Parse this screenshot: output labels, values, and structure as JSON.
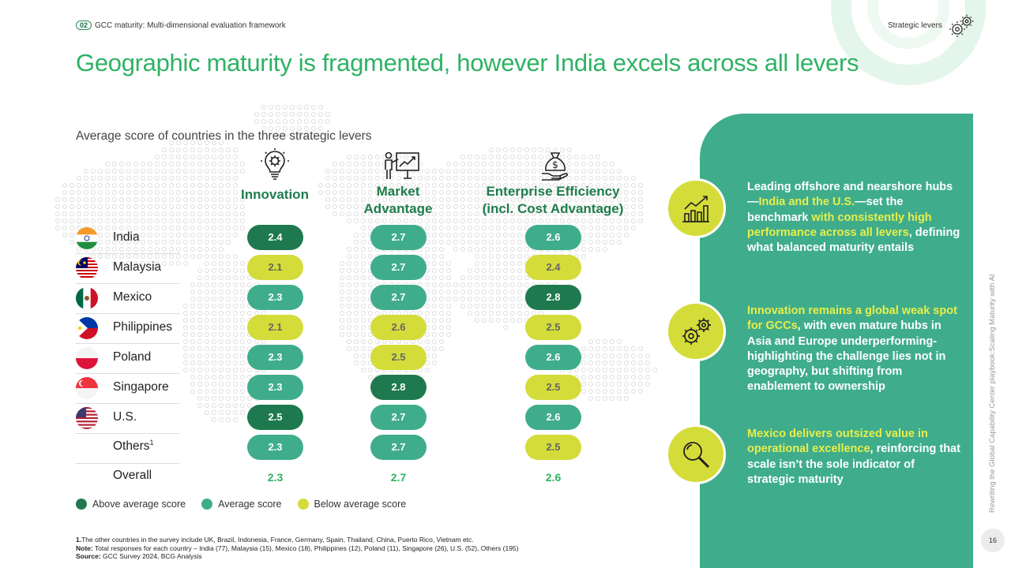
{
  "header": {
    "section_number": "02",
    "section_label": "GCC maturity: Multi-dimensional evaluation framework",
    "right_label": "Strategic levers"
  },
  "title": "Geographic maturity is fragmented, however India excels across all levers",
  "subtitle": "Average score of countries in the three strategic levers",
  "levers": [
    {
      "line1": "Innovation",
      "line2": "",
      "icon": "lightbulb-gear-icon"
    },
    {
      "line1": "Market",
      "line2": "Advantage",
      "icon": "presentation-growth-icon"
    },
    {
      "line1": "Enterprise Efficiency",
      "line2": "(incl. Cost Advantage)",
      "icon": "money-bag-hand-icon"
    }
  ],
  "rows": [
    {
      "country": "India",
      "scores": [
        "2.4",
        "2.7",
        "2.6"
      ],
      "levels": [
        "above",
        "avg",
        "avg"
      ]
    },
    {
      "country": "Malaysia",
      "scores": [
        "2.1",
        "2.7",
        "2.4"
      ],
      "levels": [
        "below",
        "avg",
        "below"
      ]
    },
    {
      "country": "Mexico",
      "scores": [
        "2.3",
        "2.7",
        "2.8"
      ],
      "levels": [
        "avg",
        "avg",
        "above"
      ]
    },
    {
      "country": "Philippines",
      "scores": [
        "2.1",
        "2.6",
        "2.5"
      ],
      "levels": [
        "below",
        "below",
        "below"
      ]
    },
    {
      "country": "Poland",
      "scores": [
        "2.3",
        "2.5",
        "2.6"
      ],
      "levels": [
        "avg",
        "below",
        "avg"
      ]
    },
    {
      "country": "Singapore",
      "scores": [
        "2.3",
        "2.8",
        "2.5"
      ],
      "levels": [
        "avg",
        "above",
        "below"
      ]
    },
    {
      "country": "U.S.",
      "scores": [
        "2.5",
        "2.7",
        "2.6"
      ],
      "levels": [
        "above",
        "avg",
        "avg"
      ]
    },
    {
      "country": "Others",
      "country_sup": "1",
      "scores": [
        "2.3",
        "2.7",
        "2.5"
      ],
      "levels": [
        "avg",
        "avg",
        "below"
      ]
    }
  ],
  "overall": {
    "label": "Overall",
    "scores": [
      "2.3",
      "2.7",
      "2.6"
    ]
  },
  "legend": [
    {
      "label": "Above average score",
      "color": "#1e7a4e"
    },
    {
      "label": "Average score",
      "color": "#3fad8c"
    },
    {
      "label": "Below average score",
      "color": "#d4dc3a"
    }
  ],
  "insights": [
    {
      "icon": "growth-chart-icon",
      "parts": [
        {
          "t": "Leading offshore and nearshore hubs—",
          "hl": false
        },
        {
          "t": "India and the U.S.",
          "hl": true
        },
        {
          "t": "—set the benchmark ",
          "hl": false
        },
        {
          "t": "with consistently high performance across all levers",
          "hl": true
        },
        {
          "t": ", defining what balanced maturity entails",
          "hl": false
        }
      ]
    },
    {
      "icon": "gears-icon",
      "parts": [
        {
          "t": "Innovation remains a global weak spot for GCCs",
          "hl": true
        },
        {
          "t": ", with even mature hubs in Asia and Europe underperforming-highlighting the challenge lies not in geography, but shifting from enablement to ownership",
          "hl": false
        }
      ]
    },
    {
      "icon": "magnifier-icon",
      "parts": [
        {
          "t": "Mexico delivers outsized value in operational excellence",
          "hl": true
        },
        {
          "t": ", reinforcing that scale isn’t the sole indicator of strategic maturity",
          "hl": false
        }
      ]
    }
  ],
  "footnotes": {
    "note1_marker": "1.",
    "note1": "The other countries in the survey include UK, Brazil, Indonesia, France, Germany, Spain, Thailand, China, Puerto Rico, Vietnam etc.",
    "note_label": "Note:",
    "note": " Total responses for each country – India (77), Malaysia (15), Mexico (18), Philippines (12), Poland (11), Singapore (26), U.S. (52), Others (195)",
    "source_label": "Source:",
    "source": " GCC Survey 2024, BCG Analysis"
  },
  "side_vertical_text": "Rewriting the Global Capability Center playbook:Scaling Maturity with AI",
  "page_number": "16"
}
